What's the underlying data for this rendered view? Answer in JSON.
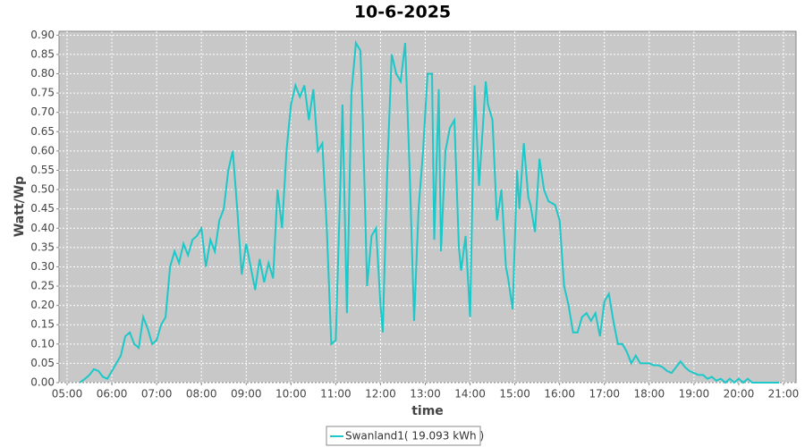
{
  "chart_data": {
    "type": "line",
    "title": "10-6-2025",
    "x_label": "time",
    "y_label": "Watt/Wp",
    "xlim": [
      4.82,
      21.28
    ],
    "xticks": [
      {
        "value": 5,
        "label": "05:00"
      },
      {
        "value": 6,
        "label": "06:00"
      },
      {
        "value": 7,
        "label": "07:00"
      },
      {
        "value": 8,
        "label": "08:00"
      },
      {
        "value": 9,
        "label": "09:00"
      },
      {
        "value": 10,
        "label": "10:00"
      },
      {
        "value": 11,
        "label": "11:00"
      },
      {
        "value": 12,
        "label": "12:00"
      },
      {
        "value": 13,
        "label": "13:00"
      },
      {
        "value": 14,
        "label": "14:00"
      },
      {
        "value": 15,
        "label": "15:00"
      },
      {
        "value": 16,
        "label": "16:00"
      },
      {
        "value": 17,
        "label": "17:00"
      },
      {
        "value": 18,
        "label": "18:00"
      },
      {
        "value": 19,
        "label": "19:00"
      },
      {
        "value": 20,
        "label": "20:00"
      },
      {
        "value": 21,
        "label": "21:00"
      }
    ],
    "ylim": [
      0,
      0.91
    ],
    "yticks": [
      {
        "value": 0,
        "label": "0.00"
      },
      0.05,
      {
        "value": 0.1,
        "label": "0.10"
      },
      0.15,
      {
        "value": 0.2,
        "label": "0.20"
      },
      0.25,
      {
        "value": 0.3,
        "label": "0.30"
      },
      0.35,
      {
        "value": 0.4,
        "label": "0.40"
      },
      0.45,
      {
        "value": 0.5,
        "label": "0.50"
      },
      0.55,
      {
        "value": 0.6,
        "label": "0.60"
      },
      0.65,
      {
        "value": 0.7,
        "label": "0.70"
      },
      0.75,
      {
        "value": 0.8,
        "label": "0.80"
      },
      0.85,
      {
        "value": 0.9,
        "label": "0.90"
      }
    ],
    "grid": true,
    "x": [
      5.28,
      5.4,
      5.5,
      5.6,
      5.7,
      5.8,
      5.9,
      6.0,
      6.1,
      6.2,
      6.3,
      6.4,
      6.5,
      6.6,
      6.7,
      6.8,
      6.9,
      7.0,
      7.1,
      7.2,
      7.3,
      7.4,
      7.5,
      7.6,
      7.7,
      7.8,
      7.9,
      8.0,
      8.1,
      8.2,
      8.3,
      8.4,
      8.5,
      8.6,
      8.7,
      8.8,
      8.9,
      9.0,
      9.1,
      9.2,
      9.3,
      9.4,
      9.5,
      9.6,
      9.7,
      9.8,
      9.9,
      10.0,
      10.1,
      10.2,
      10.3,
      10.4,
      10.5,
      10.6,
      10.7,
      10.8,
      10.9,
      11.0,
      11.1,
      11.15,
      11.25,
      11.35,
      11.45,
      11.55,
      11.6,
      11.7,
      11.8,
      11.9,
      12.0,
      12.05,
      12.15,
      12.25,
      12.35,
      12.45,
      12.55,
      12.65,
      12.75,
      12.85,
      12.95,
      13.05,
      13.15,
      13.2,
      13.3,
      13.35,
      13.45,
      13.55,
      13.65,
      13.75,
      13.8,
      13.9,
      14.0,
      14.1,
      14.2,
      14.25,
      14.35,
      14.4,
      14.5,
      14.6,
      14.7,
      14.8,
      14.85,
      14.95,
      15.05,
      15.1,
      15.2,
      15.3,
      15.35,
      15.45,
      15.55,
      15.65,
      15.75,
      15.9,
      16.0,
      16.1,
      16.2,
      16.3,
      16.4,
      16.5,
      16.6,
      16.7,
      16.8,
      16.9,
      17.0,
      17.1,
      17.2,
      17.3,
      17.4,
      17.5,
      17.6,
      17.7,
      17.8,
      17.9,
      18.0,
      18.1,
      18.2,
      18.3,
      18.4,
      18.5,
      18.6,
      18.7,
      18.8,
      18.9,
      19.0,
      19.1,
      19.2,
      19.3,
      19.4,
      19.5,
      19.6,
      19.7,
      19.8,
      19.9,
      20.0,
      20.1,
      20.2,
      20.3,
      20.5,
      20.9
    ],
    "series": [
      {
        "name": "Swanland1( 19.093 kWh )",
        "color": "#1cc8c8",
        "values": [
          0.0,
          0.01,
          0.02,
          0.035,
          0.03,
          0.015,
          0.01,
          0.03,
          0.05,
          0.07,
          0.12,
          0.13,
          0.1,
          0.09,
          0.17,
          0.14,
          0.1,
          0.11,
          0.15,
          0.17,
          0.3,
          0.34,
          0.31,
          0.36,
          0.33,
          0.37,
          0.38,
          0.4,
          0.3,
          0.37,
          0.34,
          0.42,
          0.45,
          0.55,
          0.6,
          0.45,
          0.28,
          0.36,
          0.3,
          0.24,
          0.32,
          0.26,
          0.31,
          0.27,
          0.5,
          0.4,
          0.6,
          0.72,
          0.77,
          0.74,
          0.77,
          0.68,
          0.76,
          0.6,
          0.62,
          0.4,
          0.1,
          0.11,
          0.5,
          0.72,
          0.18,
          0.75,
          0.88,
          0.86,
          0.7,
          0.25,
          0.38,
          0.4,
          0.2,
          0.13,
          0.55,
          0.85,
          0.8,
          0.78,
          0.88,
          0.55,
          0.16,
          0.45,
          0.6,
          0.8,
          0.8,
          0.37,
          0.76,
          0.34,
          0.6,
          0.66,
          0.68,
          0.35,
          0.29,
          0.38,
          0.17,
          0.77,
          0.51,
          0.6,
          0.78,
          0.72,
          0.68,
          0.42,
          0.5,
          0.3,
          0.27,
          0.19,
          0.55,
          0.45,
          0.62,
          0.48,
          0.46,
          0.39,
          0.58,
          0.5,
          0.47,
          0.46,
          0.42,
          0.25,
          0.2,
          0.13,
          0.13,
          0.17,
          0.18,
          0.16,
          0.18,
          0.12,
          0.21,
          0.23,
          0.16,
          0.1,
          0.1,
          0.08,
          0.05,
          0.07,
          0.05,
          0.05,
          0.05,
          0.045,
          0.045,
          0.04,
          0.03,
          0.025,
          0.04,
          0.055,
          0.04,
          0.03,
          0.025,
          0.02,
          0.02,
          0.01,
          0.015,
          0.005,
          0.01,
          0.0,
          0.01,
          0.0,
          0.01,
          0.0,
          0.01,
          0.0,
          0.0,
          0.0
        ]
      }
    ]
  }
}
